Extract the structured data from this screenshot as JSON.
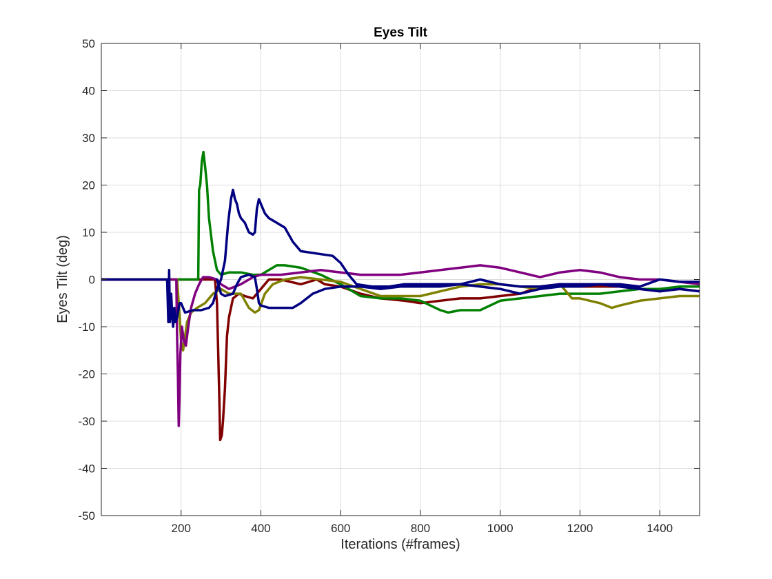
{
  "chart_data": {
    "type": "line",
    "title": "Eyes Tilt",
    "xlabel": "Iterations (#frames)",
    "ylabel": "Eyes Tilt (deg)",
    "xlim": [
      0,
      1500
    ],
    "ylim": [
      -50,
      50
    ],
    "xticks": [
      200,
      400,
      600,
      800,
      1000,
      1200,
      1400
    ],
    "yticks": [
      -50,
      -40,
      -30,
      -20,
      -10,
      0,
      10,
      20,
      30,
      40,
      50
    ],
    "grid": true,
    "box": true,
    "series": [
      {
        "color": "#800000",
        "points": [
          [
            0,
            0
          ],
          [
            170,
            0
          ],
          [
            200,
            0
          ],
          [
            240,
            0
          ],
          [
            285,
            0
          ],
          [
            290,
            -5
          ],
          [
            293,
            -15
          ],
          [
            296,
            -26
          ],
          [
            298,
            -34
          ],
          [
            302,
            -33
          ],
          [
            305,
            -30
          ],
          [
            310,
            -23
          ],
          [
            315,
            -12
          ],
          [
            320,
            -8
          ],
          [
            330,
            -4
          ],
          [
            345,
            -3
          ],
          [
            360,
            -3.5
          ],
          [
            380,
            -4
          ],
          [
            400,
            -2
          ],
          [
            420,
            0
          ],
          [
            450,
            0
          ],
          [
            500,
            -1
          ],
          [
            540,
            0
          ],
          [
            560,
            -1
          ],
          [
            600,
            -1.5
          ],
          [
            650,
            -3
          ],
          [
            700,
            -4
          ],
          [
            760,
            -4.5
          ],
          [
            800,
            -5
          ],
          [
            850,
            -4.5
          ],
          [
            900,
            -4
          ],
          [
            950,
            -4
          ],
          [
            1000,
            -3.5
          ],
          [
            1050,
            -3
          ],
          [
            1100,
            -1.5
          ],
          [
            1150,
            -1
          ],
          [
            1200,
            -1.5
          ],
          [
            1260,
            -1.5
          ],
          [
            1300,
            -1.5
          ],
          [
            1350,
            -2
          ],
          [
            1400,
            -2.5
          ],
          [
            1450,
            -2
          ],
          [
            1500,
            -2.5
          ]
        ]
      },
      {
        "color": "#008000",
        "points": [
          [
            0,
            0
          ],
          [
            170,
            0
          ],
          [
            200,
            0
          ],
          [
            240,
            0
          ],
          [
            243,
            0
          ],
          [
            245,
            19
          ],
          [
            248,
            20
          ],
          [
            252,
            25
          ],
          [
            256,
            27
          ],
          [
            260,
            24
          ],
          [
            265,
            20
          ],
          [
            270,
            13
          ],
          [
            280,
            6
          ],
          [
            290,
            2
          ],
          [
            300,
            1
          ],
          [
            320,
            1.5
          ],
          [
            350,
            1.5
          ],
          [
            380,
            1
          ],
          [
            400,
            1
          ],
          [
            420,
            2
          ],
          [
            440,
            3
          ],
          [
            460,
            3
          ],
          [
            500,
            2.5
          ],
          [
            550,
            1
          ],
          [
            600,
            -1
          ],
          [
            650,
            -3.5
          ],
          [
            700,
            -4
          ],
          [
            750,
            -4
          ],
          [
            800,
            -4.5
          ],
          [
            850,
            -6.5
          ],
          [
            870,
            -7
          ],
          [
            900,
            -6.5
          ],
          [
            950,
            -6.5
          ],
          [
            1000,
            -4.5
          ],
          [
            1050,
            -4
          ],
          [
            1100,
            -3.5
          ],
          [
            1150,
            -3
          ],
          [
            1200,
            -3
          ],
          [
            1250,
            -3
          ],
          [
            1300,
            -2.5
          ],
          [
            1350,
            -2
          ],
          [
            1400,
            -2
          ],
          [
            1450,
            -1.5
          ],
          [
            1500,
            -1.5
          ]
        ]
      },
      {
        "color": "#808000",
        "points": [
          [
            0,
            0
          ],
          [
            170,
            0
          ],
          [
            190,
            0
          ],
          [
            195,
            -6
          ],
          [
            200,
            -13
          ],
          [
            205,
            -15
          ],
          [
            210,
            -12
          ],
          [
            215,
            -9
          ],
          [
            225,
            -7
          ],
          [
            240,
            -6
          ],
          [
            260,
            -5
          ],
          [
            280,
            -3
          ],
          [
            300,
            -2
          ],
          [
            320,
            -3
          ],
          [
            350,
            -3
          ],
          [
            370,
            -6
          ],
          [
            385,
            -7
          ],
          [
            395,
            -6.5
          ],
          [
            410,
            -3
          ],
          [
            430,
            -1
          ],
          [
            460,
            0
          ],
          [
            500,
            0.5
          ],
          [
            550,
            0
          ],
          [
            600,
            -0.5
          ],
          [
            650,
            -2
          ],
          [
            700,
            -3.5
          ],
          [
            750,
            -3.5
          ],
          [
            800,
            -3.5
          ],
          [
            850,
            -2.5
          ],
          [
            900,
            -1.5
          ],
          [
            950,
            -1
          ],
          [
            1000,
            -1
          ],
          [
            1050,
            -1.5
          ],
          [
            1100,
            -2
          ],
          [
            1150,
            -1
          ],
          [
            1180,
            -4
          ],
          [
            1200,
            -4
          ],
          [
            1250,
            -5
          ],
          [
            1280,
            -6
          ],
          [
            1300,
            -5.5
          ],
          [
            1350,
            -4.5
          ],
          [
            1400,
            -4
          ],
          [
            1450,
            -3.5
          ],
          [
            1500,
            -3.5
          ]
        ]
      },
      {
        "color": "#800080",
        "points": [
          [
            0,
            0
          ],
          [
            170,
            0
          ],
          [
            188,
            0
          ],
          [
            190,
            -12
          ],
          [
            192,
            -20
          ],
          [
            194,
            -31
          ],
          [
            196,
            -25
          ],
          [
            198,
            -16
          ],
          [
            202,
            -10
          ],
          [
            207,
            -13
          ],
          [
            212,
            -14
          ],
          [
            218,
            -10
          ],
          [
            225,
            -6
          ],
          [
            235,
            -3
          ],
          [
            245,
            -1
          ],
          [
            255,
            0.5
          ],
          [
            270,
            0.5
          ],
          [
            290,
            0
          ],
          [
            300,
            -1
          ],
          [
            320,
            -2
          ],
          [
            350,
            -1
          ],
          [
            380,
            0.5
          ],
          [
            400,
            1
          ],
          [
            450,
            1
          ],
          [
            500,
            1.5
          ],
          [
            550,
            2
          ],
          [
            600,
            1.5
          ],
          [
            650,
            1
          ],
          [
            700,
            1
          ],
          [
            750,
            1
          ],
          [
            800,
            1.5
          ],
          [
            850,
            2
          ],
          [
            900,
            2.5
          ],
          [
            950,
            3
          ],
          [
            1000,
            2.5
          ],
          [
            1050,
            1.5
          ],
          [
            1100,
            0.5
          ],
          [
            1150,
            1.5
          ],
          [
            1200,
            2
          ],
          [
            1250,
            1.5
          ],
          [
            1300,
            0.5
          ],
          [
            1350,
            0
          ],
          [
            1400,
            0
          ],
          [
            1450,
            -0.5
          ],
          [
            1500,
            -1
          ]
        ]
      },
      {
        "color": "#000080",
        "points": [
          [
            0,
            0
          ],
          [
            165,
            0
          ],
          [
            168,
            -9
          ],
          [
            170,
            2
          ],
          [
            172,
            -9
          ],
          [
            175,
            -3
          ],
          [
            178,
            -8
          ],
          [
            180,
            -10
          ],
          [
            183,
            -6
          ],
          [
            186,
            -9
          ],
          [
            190,
            -8
          ],
          [
            196,
            -5
          ],
          [
            200,
            -5
          ],
          [
            210,
            -7
          ],
          [
            230,
            -6.5
          ],
          [
            250,
            -6.5
          ],
          [
            270,
            -6
          ],
          [
            280,
            -5
          ],
          [
            290,
            -2
          ],
          [
            300,
            0
          ],
          [
            310,
            4
          ],
          [
            318,
            12
          ],
          [
            325,
            17
          ],
          [
            330,
            19
          ],
          [
            335,
            17
          ],
          [
            340,
            16
          ],
          [
            345,
            14
          ],
          [
            350,
            13
          ],
          [
            360,
            12
          ],
          [
            370,
            10
          ],
          [
            380,
            9.5
          ],
          [
            385,
            10
          ],
          [
            390,
            15
          ],
          [
            395,
            17
          ],
          [
            400,
            16
          ],
          [
            410,
            14
          ],
          [
            420,
            13
          ],
          [
            440,
            12
          ],
          [
            460,
            11
          ],
          [
            480,
            8
          ],
          [
            500,
            6
          ],
          [
            540,
            5.5
          ],
          [
            580,
            5
          ],
          [
            600,
            3.5
          ],
          [
            620,
            1
          ],
          [
            640,
            -1
          ],
          [
            680,
            -1.5
          ],
          [
            720,
            -1.5
          ],
          [
            760,
            -1
          ],
          [
            800,
            -1
          ],
          [
            850,
            -1
          ],
          [
            900,
            -1
          ],
          [
            950,
            -1.5
          ],
          [
            1000,
            -2
          ],
          [
            1050,
            -3
          ],
          [
            1100,
            -2
          ],
          [
            1150,
            -1.5
          ],
          [
            1200,
            -1.5
          ],
          [
            1250,
            -1
          ],
          [
            1300,
            -1
          ],
          [
            1350,
            -1.5
          ],
          [
            1400,
            0
          ],
          [
            1450,
            -0.5
          ],
          [
            1500,
            -0.5
          ]
        ]
      },
      {
        "color": "#000080",
        "points": [
          [
            290,
            0
          ],
          [
            300,
            -3
          ],
          [
            310,
            -3.5
          ],
          [
            330,
            -3
          ],
          [
            340,
            -1
          ],
          [
            350,
            0.5
          ],
          [
            370,
            1
          ],
          [
            385,
            0.5
          ],
          [
            390,
            -2
          ],
          [
            395,
            -5
          ],
          [
            400,
            -5.5
          ],
          [
            420,
            -6
          ],
          [
            450,
            -6
          ],
          [
            480,
            -6
          ],
          [
            500,
            -5
          ],
          [
            530,
            -3
          ],
          [
            560,
            -2
          ],
          [
            600,
            -1.5
          ],
          [
            650,
            -1.5
          ],
          [
            700,
            -2
          ],
          [
            750,
            -1.5
          ],
          [
            800,
            -1.5
          ],
          [
            850,
            -1.5
          ],
          [
            900,
            -1
          ],
          [
            950,
            0
          ],
          [
            1000,
            -1
          ],
          [
            1050,
            -1.5
          ],
          [
            1100,
            -1.5
          ],
          [
            1150,
            -1
          ],
          [
            1200,
            -1
          ],
          [
            1250,
            -1
          ],
          [
            1300,
            -1.5
          ],
          [
            1350,
            -2
          ],
          [
            1400,
            -2.5
          ],
          [
            1450,
            -2
          ],
          [
            1500,
            -2.5
          ]
        ]
      }
    ]
  }
}
